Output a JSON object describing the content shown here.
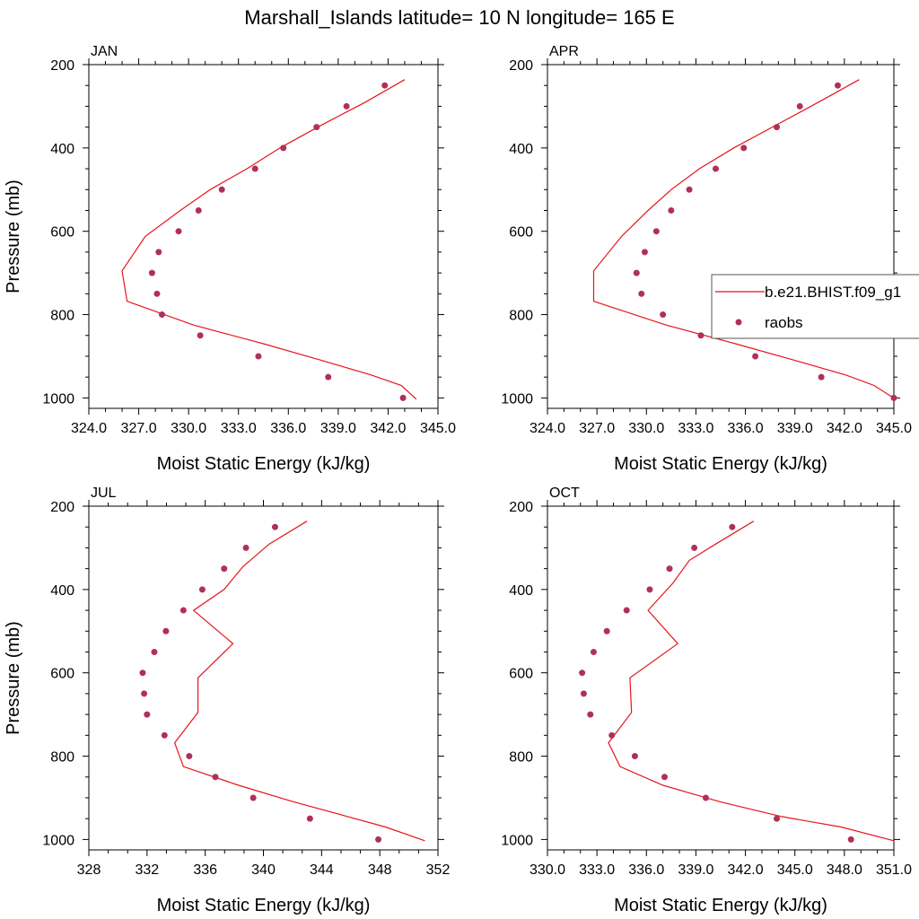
{
  "title": "Marshall_Islands  latitude= 10 N longitude= 165 E",
  "legend": {
    "model_label": "b.e21.BHIST.f09_g1",
    "obs_label": "raobs",
    "model_color": "#e8141c",
    "obs_color": "#b0305a"
  },
  "chart_data": [
    {
      "type": "line",
      "panel": "JAN",
      "xlabel": "Moist Static Energy (kJ/kg)",
      "ylabel": "Pressure (mb)",
      "xlim": [
        324,
        345
      ],
      "ylim": [
        200,
        1025
      ],
      "y_inverted": true,
      "xticks": [
        324,
        327,
        330,
        333,
        336,
        339,
        342,
        345
      ],
      "xtick_labels": [
        "324.0",
        "327.0",
        "330.0",
        "333.0",
        "336.0",
        "339.0",
        "342.0",
        "345.0"
      ],
      "yticks": [
        200,
        400,
        600,
        800,
        1000
      ],
      "ytick_labels": [
        "200",
        "400",
        "600",
        "800",
        "1000"
      ],
      "model": {
        "p": [
          236,
          291,
          345,
          400,
          450,
          500,
          550,
          612,
          695,
          768,
          825,
          870,
          910,
          945,
          970,
          1003
        ],
        "x": [
          343.0,
          340.6,
          338.0,
          335.5,
          333.5,
          331.3,
          329.5,
          327.4,
          326.0,
          326.3,
          330.3,
          334.5,
          338.0,
          341.0,
          342.8,
          343.7
        ]
      },
      "obs": {
        "p": [
          250,
          300,
          350,
          400,
          450,
          500,
          550,
          600,
          650,
          700,
          750,
          800,
          850,
          900,
          950,
          1000
        ],
        "x": [
          341.8,
          339.5,
          337.7,
          335.7,
          334.0,
          332.0,
          330.6,
          329.4,
          328.2,
          327.8,
          328.1,
          328.4,
          330.7,
          334.2,
          338.4,
          342.9
        ]
      }
    },
    {
      "type": "line",
      "panel": "APR",
      "xlabel": "Moist Static Energy (kJ/kg)",
      "ylabel": "",
      "xlim": [
        324,
        345
      ],
      "ylim": [
        200,
        1025
      ],
      "y_inverted": true,
      "xticks": [
        324,
        327,
        330,
        333,
        336,
        339,
        342,
        345
      ],
      "xtick_labels": [
        "324.0",
        "327.0",
        "330.0",
        "333.0",
        "336.0",
        "339.0",
        "342.0",
        "345.0"
      ],
      "yticks": [
        200,
        400,
        600,
        800,
        1000
      ],
      "ytick_labels": [
        "200",
        "400",
        "600",
        "800",
        "1000"
      ],
      "model": {
        "p": [
          236,
          291,
          340,
          400,
          450,
          500,
          550,
          612,
          695,
          768,
          825,
          870,
          910,
          945,
          970,
          1003
        ],
        "x": [
          342.9,
          340.4,
          338.1,
          335.3,
          333.2,
          331.5,
          330.1,
          328.5,
          326.8,
          326.8,
          331.2,
          335.4,
          339.0,
          342.1,
          343.8,
          345.1
        ]
      },
      "obs": {
        "p": [
          250,
          300,
          350,
          400,
          450,
          500,
          550,
          600,
          650,
          700,
          750,
          800,
          850,
          900,
          950,
          1000
        ],
        "x": [
          341.6,
          339.3,
          337.9,
          335.9,
          334.2,
          332.6,
          331.5,
          330.6,
          329.9,
          329.4,
          329.7,
          331.0,
          333.3,
          336.6,
          340.6,
          345.0
        ]
      }
    },
    {
      "type": "line",
      "panel": "JUL",
      "xlabel": "Moist Static Energy (kJ/kg)",
      "ylabel": "Pressure (mb)",
      "xlim": [
        328,
        352
      ],
      "ylim": [
        200,
        1025
      ],
      "y_inverted": true,
      "xticks": [
        328,
        332,
        336,
        340,
        344,
        348,
        352
      ],
      "xtick_labels": [
        "328",
        "332",
        "336",
        "340",
        "344",
        "348",
        "352"
      ],
      "yticks": [
        200,
        400,
        600,
        800,
        1000
      ],
      "ytick_labels": [
        "200",
        "400",
        "600",
        "800",
        "1000"
      ],
      "model": {
        "p": [
          236,
          291,
          345,
          400,
          450,
          530,
          612,
          695,
          768,
          825,
          870,
          910,
          945,
          970,
          1003
        ],
        "x": [
          343.0,
          340.4,
          338.6,
          337.3,
          335.2,
          337.9,
          335.5,
          335.5,
          333.9,
          334.5,
          338.3,
          342.1,
          345.8,
          348.4,
          351.1
        ]
      },
      "obs": {
        "p": [
          250,
          300,
          350,
          400,
          450,
          500,
          550,
          600,
          650,
          700,
          750,
          800,
          850,
          900,
          950,
          1000
        ],
        "x": [
          340.8,
          338.8,
          337.3,
          335.8,
          334.5,
          333.3,
          332.5,
          331.7,
          331.8,
          332.0,
          333.2,
          334.9,
          336.7,
          339.3,
          343.2,
          347.9
        ]
      }
    },
    {
      "type": "line",
      "panel": "OCT",
      "xlabel": "Moist Static Energy (kJ/kg)",
      "ylabel": "",
      "xlim": [
        330,
        351
      ],
      "ylim": [
        200,
        1025
      ],
      "y_inverted": true,
      "xticks": [
        330,
        333,
        336,
        339,
        342,
        345,
        348,
        351
      ],
      "xtick_labels": [
        "330.0",
        "333.0",
        "336.0",
        "339.0",
        "342.0",
        "345.0",
        "348.0",
        "351.0"
      ],
      "yticks": [
        200,
        400,
        600,
        800,
        1000
      ],
      "ytick_labels": [
        "200",
        "400",
        "600",
        "800",
        "1000"
      ],
      "model": {
        "p": [
          236,
          291,
          330,
          385,
          450,
          530,
          612,
          695,
          768,
          825,
          870,
          910,
          945,
          970,
          1003
        ],
        "x": [
          342.5,
          340.2,
          338.6,
          337.6,
          336.1,
          337.9,
          335.0,
          335.1,
          333.7,
          334.4,
          337.0,
          340.5,
          344.2,
          347.8,
          351.0
        ]
      },
      "obs": {
        "p": [
          250,
          300,
          350,
          400,
          450,
          500,
          550,
          600,
          650,
          700,
          750,
          800,
          850,
          900,
          950,
          1000
        ],
        "x": [
          341.2,
          338.9,
          337.4,
          336.2,
          334.8,
          333.6,
          332.8,
          332.1,
          332.2,
          332.6,
          333.9,
          335.3,
          337.1,
          339.6,
          343.9,
          348.4
        ]
      }
    }
  ]
}
